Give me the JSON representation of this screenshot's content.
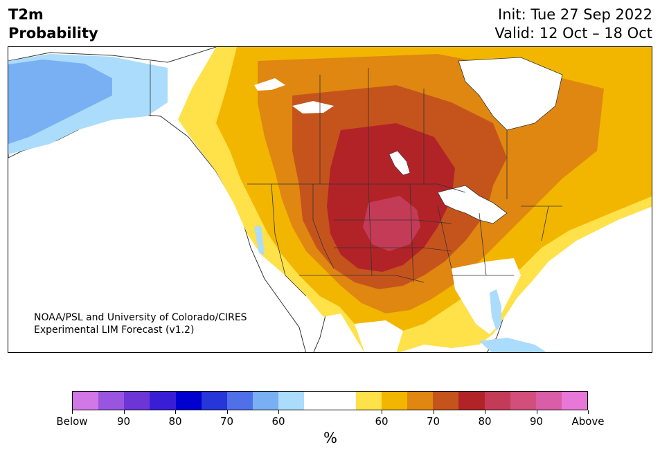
{
  "header": {
    "title_line1": "T2m",
    "title_line2": "Probability",
    "init_label": "Init: Tue 27 Sep 2022",
    "valid_label": "Valid: 12 Oct – 18 Oct"
  },
  "map": {
    "credit_line1": "NOAA/PSL and University of Colorado/CIRES",
    "credit_line2": "Experimental LIM Forecast (v1.2)"
  },
  "colorbar": {
    "colors": [
      "#d277e8",
      "#9a55e0",
      "#6c36d6",
      "#3a1ed6",
      "#0000d0",
      "#2636d8",
      "#4f70e8",
      "#79b0f4",
      "#abdcfc",
      "#ffffff",
      "#ffffff",
      "#ffe14a",
      "#f2b600",
      "#df8710",
      "#c5541c",
      "#b22328",
      "#c43b57",
      "#d24f7c",
      "#da5da8",
      "#e878d8"
    ],
    "tick_labels": [
      "Below",
      "90",
      "80",
      "70",
      "60",
      "60",
      "70",
      "80",
      "90",
      "Above"
    ],
    "unit_label": "%"
  }
}
